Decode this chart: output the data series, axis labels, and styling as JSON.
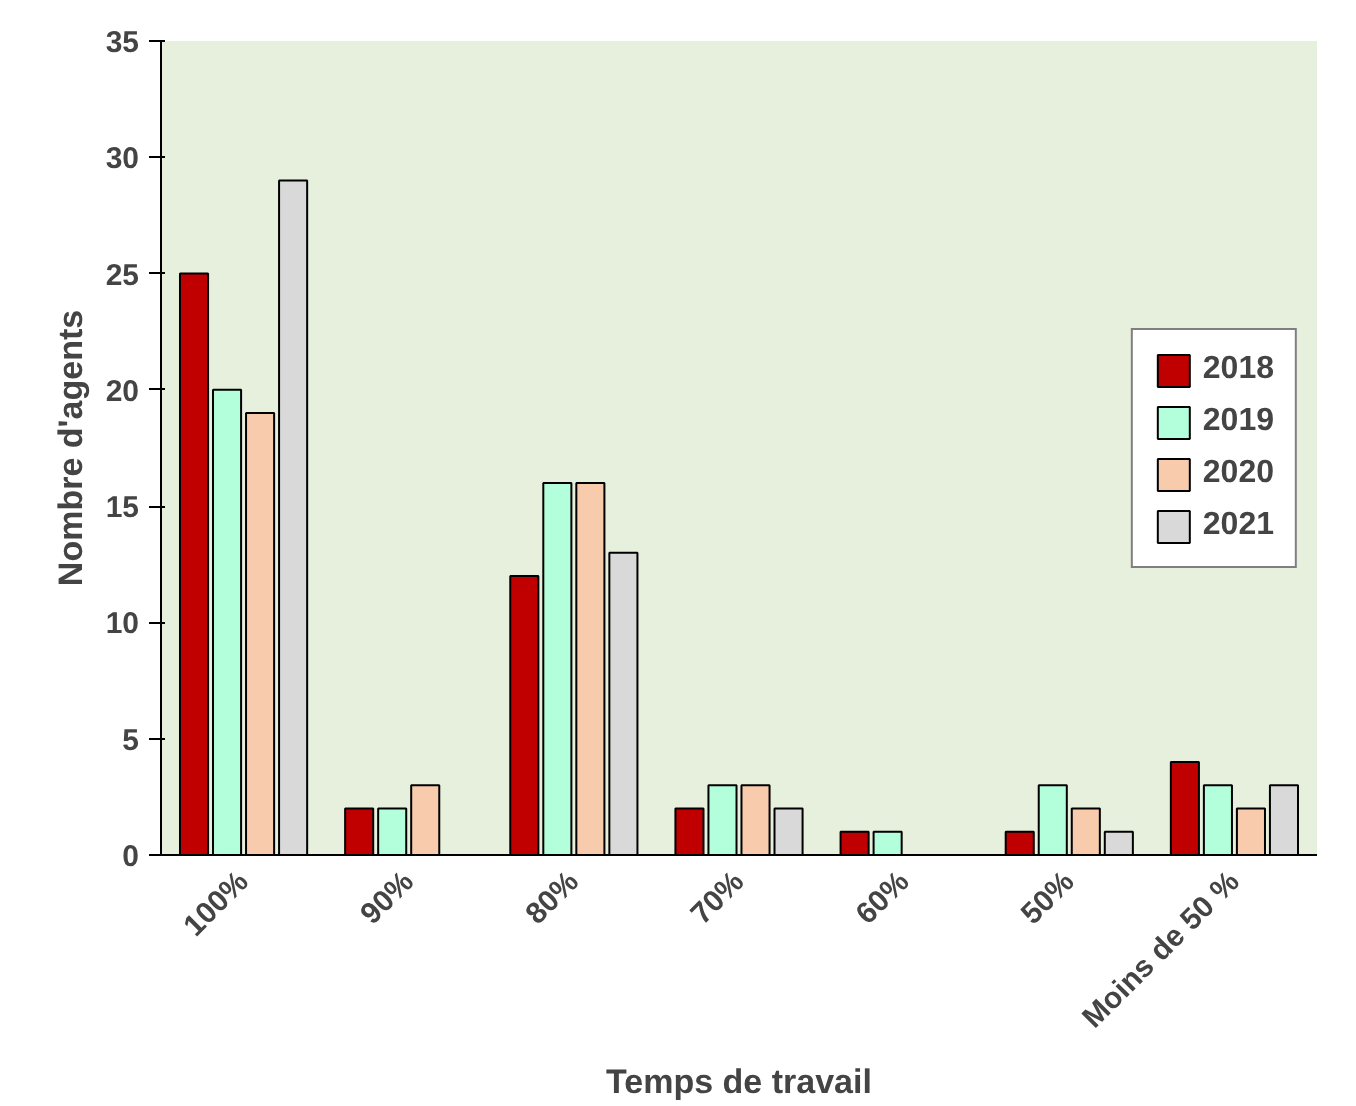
{
  "chart_data": {
    "type": "bar",
    "xlabel": "Temps de travail",
    "ylabel": "Nombre d'agents",
    "categories": [
      "100%",
      "90%",
      "80%",
      "70%",
      "60%",
      "50%",
      "Moins de 50 %"
    ],
    "series": [
      {
        "name": "2018",
        "color": "#c00000",
        "values": [
          25,
          2,
          12,
          2,
          1,
          1,
          4
        ]
      },
      {
        "name": "2019",
        "color": "#b3ffdc",
        "values": [
          20,
          2,
          16,
          3,
          1,
          3,
          3
        ]
      },
      {
        "name": "2020",
        "color": "#f8cbad",
        "values": [
          19,
          3,
          16,
          3,
          null,
          2,
          2
        ]
      },
      {
        "name": "2021",
        "color": "#d9d9d9",
        "values": [
          29,
          null,
          13,
          2,
          null,
          1,
          3
        ]
      }
    ],
    "ylim": [
      0,
      35
    ],
    "yticks": [
      0,
      5,
      10,
      15,
      20,
      25,
      30,
      35
    ],
    "grid": false,
    "legend": "right"
  }
}
